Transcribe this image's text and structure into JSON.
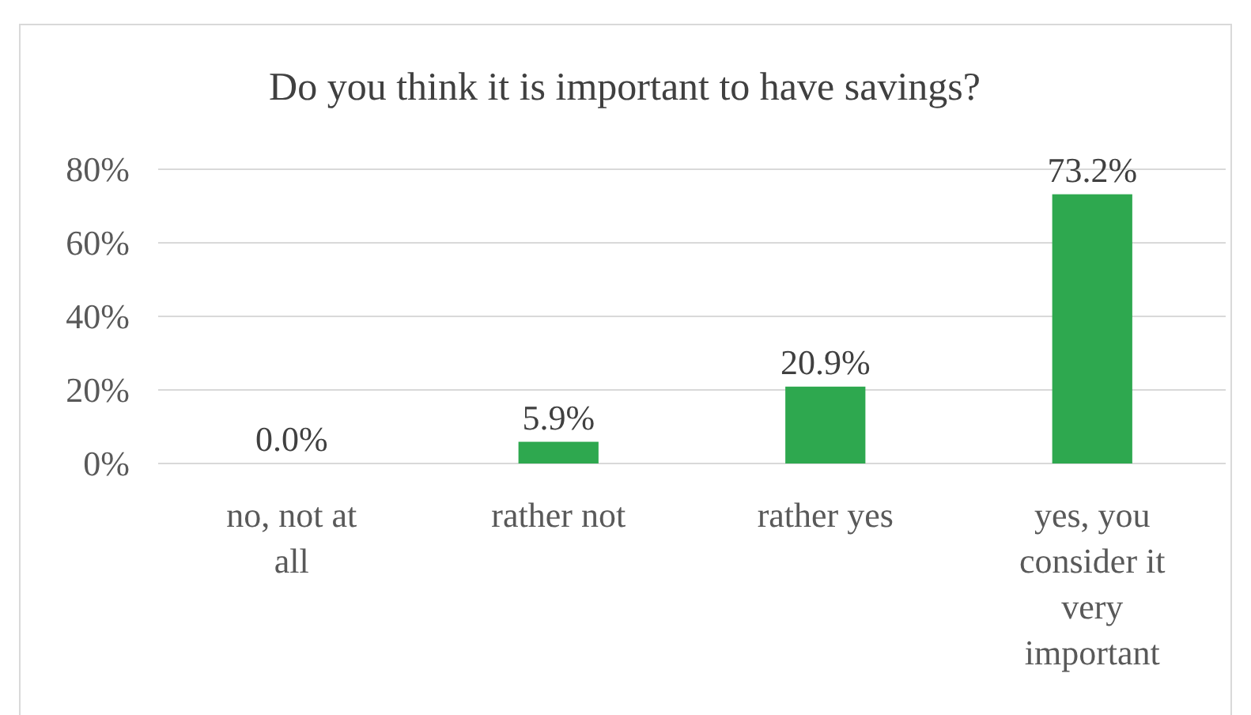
{
  "chart_data": {
    "type": "bar",
    "title": "Do you think it is important to have savings?",
    "categories": [
      "no, not at all",
      "rather not",
      "rather yes",
      "yes, you consider it very important"
    ],
    "values": [
      0.0,
      5.9,
      20.9,
      73.2
    ],
    "value_labels": [
      "0.0%",
      "5.9%",
      "20.9%",
      "73.2%"
    ],
    "color": "#2ea84f",
    "ylim": [
      0,
      80
    ],
    "yticks": [
      {
        "value": 0,
        "label": "0%"
      },
      {
        "value": 20,
        "label": "20%"
      },
      {
        "value": 40,
        "label": "40%"
      },
      {
        "value": 60,
        "label": "60%"
      },
      {
        "value": 80,
        "label": "80%"
      }
    ],
    "grid": "y"
  }
}
